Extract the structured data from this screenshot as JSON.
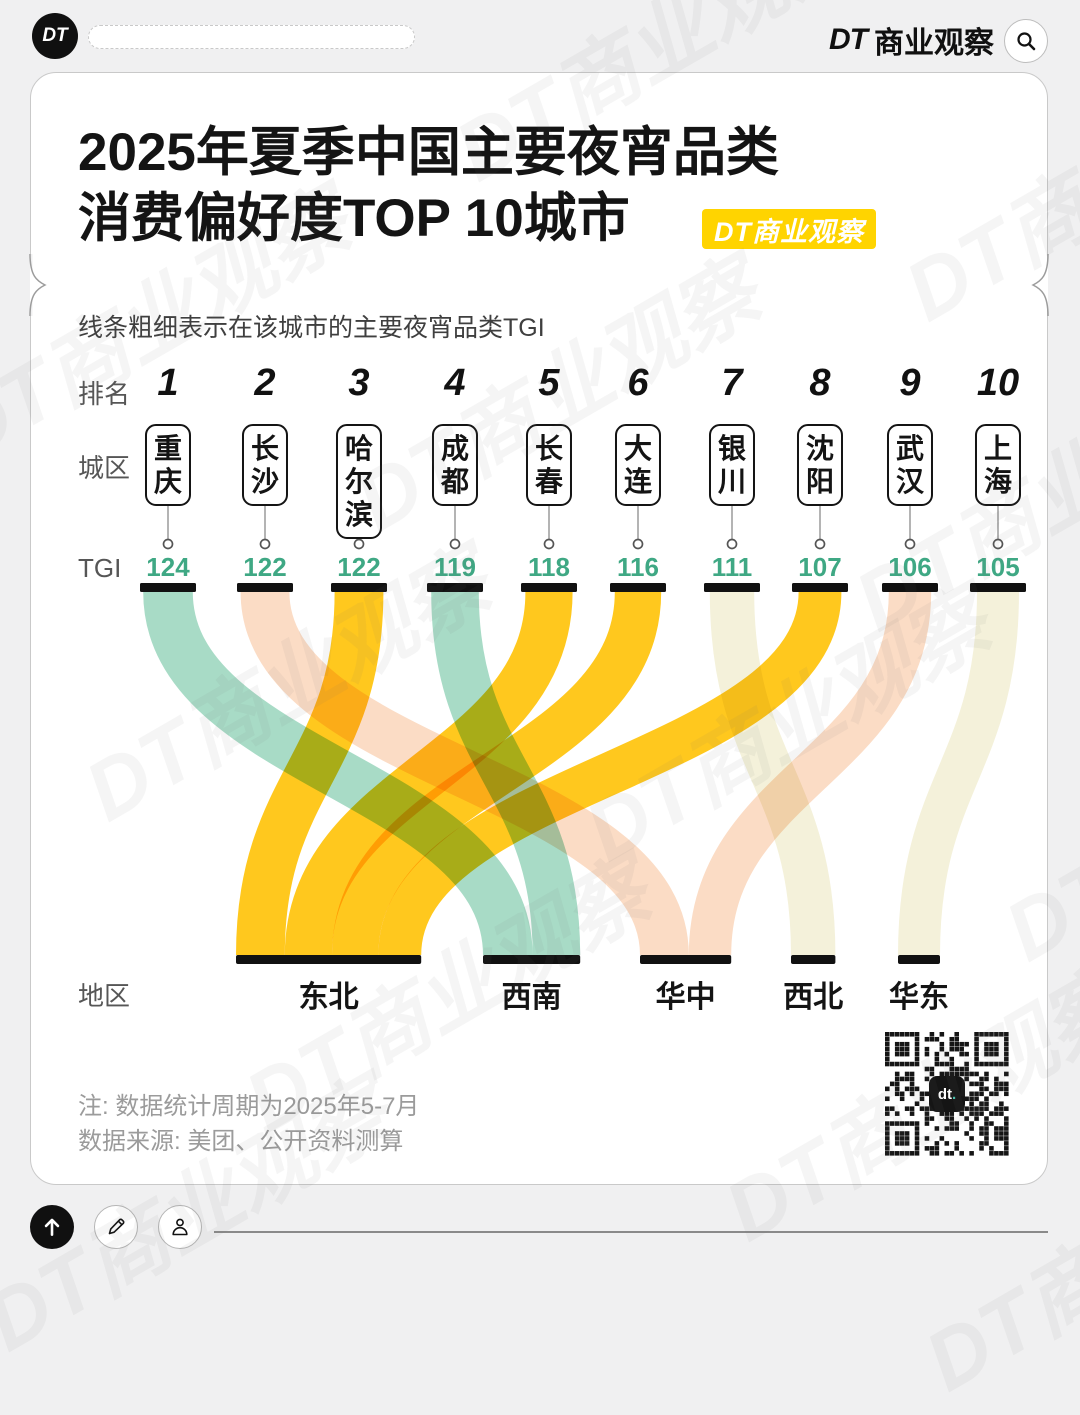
{
  "topbar": {
    "logo": "DT",
    "brand_dt": "DT",
    "brand_name": "商业观察"
  },
  "header": {
    "title_line1": "2025年夏季中国主要夜宵品类",
    "title_line2": "消费偏好度TOP 10城市",
    "badge": "DT商业观察"
  },
  "subtitle": "线条粗细表示在该城市的主要夜宵品类TGI",
  "row_labels": {
    "rank": "排名",
    "city": "城区",
    "tgi": "TGI",
    "region": "地区"
  },
  "chart_data": {
    "type": "sankey",
    "title": "2025年夏季中国主要夜宵品类消费偏好度TOP 10城市",
    "note": "线条粗细表示在该城市的主要夜宵品类TGI",
    "cities": [
      {
        "rank": 1,
        "name": "重庆",
        "tgi": 124,
        "region": "西南"
      },
      {
        "rank": 2,
        "name": "长沙",
        "tgi": 122,
        "region": "华中"
      },
      {
        "rank": 3,
        "name": "哈尔滨",
        "tgi": 122,
        "region": "东北"
      },
      {
        "rank": 4,
        "name": "成都",
        "tgi": 119,
        "region": "西南"
      },
      {
        "rank": 5,
        "name": "长春",
        "tgi": 118,
        "region": "东北"
      },
      {
        "rank": 6,
        "name": "大连",
        "tgi": 116,
        "region": "东北"
      },
      {
        "rank": 7,
        "name": "银川",
        "tgi": 111,
        "region": "西北"
      },
      {
        "rank": 8,
        "name": "沈阳",
        "tgi": 107,
        "region": "东北"
      },
      {
        "rank": 9,
        "name": "武汉",
        "tgi": 106,
        "region": "华中"
      },
      {
        "rank": 10,
        "name": "上海",
        "tgi": 105,
        "region": "华东"
      }
    ],
    "regions": [
      {
        "name": "东北",
        "color": "#FFC81E"
      },
      {
        "name": "西南",
        "color": "#A8DBC6"
      },
      {
        "name": "华中",
        "color": "#FBDCC5"
      },
      {
        "name": "西北",
        "color": "#F4F1DA"
      },
      {
        "name": "华东",
        "color": "#F4F1DA"
      }
    ],
    "colors": {
      "node_bar": "#111111",
      "tgi_value": "#3FA884"
    }
  },
  "footnotes": [
    "注: 数据统计周期为2025年5-7月",
    "数据来源: 美团、公开资料测算"
  ],
  "qr_label": "dt.",
  "watermark": "DT商业观察"
}
